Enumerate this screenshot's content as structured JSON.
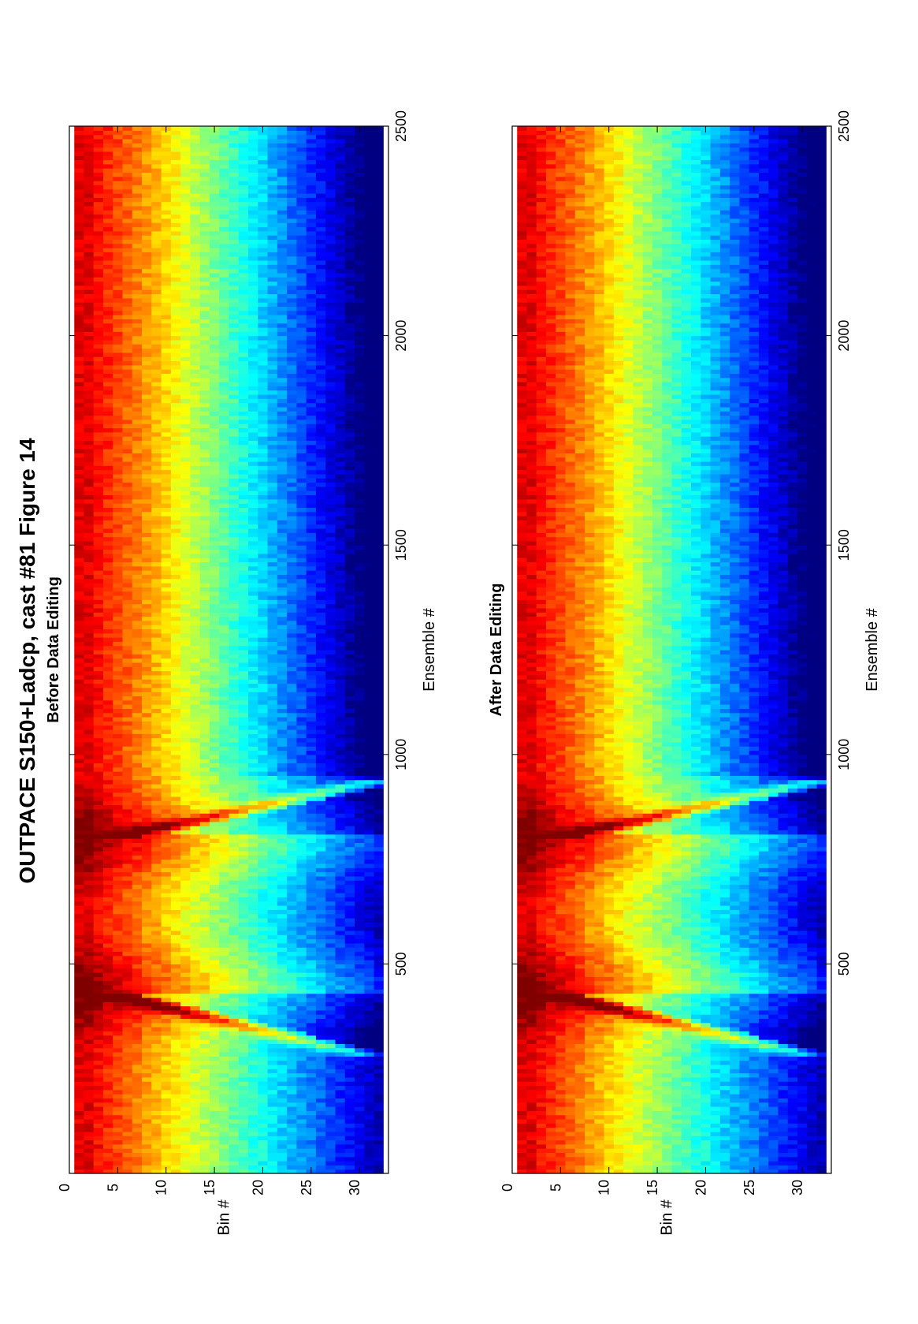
{
  "figure": {
    "main_title": "OUTPACE S150+Ladcp, cast #81  Figure 14"
  },
  "colors": {
    "background": "#ffffff",
    "axes": "#000000",
    "colormap": "jet"
  },
  "chart_data": [
    {
      "type": "heatmap",
      "title": "Before Data Editing",
      "xlabel": "Ensemble #",
      "ylabel": "Bin #",
      "xlim": [
        0,
        2500
      ],
      "ylim": [
        0,
        33
      ],
      "y_reversed": true,
      "xticks": [
        500,
        1000,
        1500,
        2000,
        2500
      ],
      "yticks": [
        0,
        5,
        10,
        15,
        20,
        25,
        30
      ],
      "ytick_labels": [
        "0",
        "5",
        "10",
        "15",
        "20",
        "25",
        "30"
      ],
      "xtick_labels": [
        "500",
        "1000",
        "1500",
        "2000",
        "2500"
      ],
      "grid": false,
      "cell_rows": 32,
      "description_of_field": {
        "profiles_ensemble_ranges": [
          [
            0,
            270
          ],
          [
            270,
            800
          ],
          [
            800,
            930
          ],
          [
            930,
            2500
          ]
        ],
        "strong_maxima_ensembles": [
          430,
          790
        ],
        "descending_front_end_ensemble": [
          270,
          930
        ]
      }
    },
    {
      "type": "heatmap",
      "title": "After Data Editing",
      "xlabel": "Ensemble #",
      "ylabel": "Bin #",
      "xlim": [
        0,
        2500
      ],
      "ylim": [
        0,
        33
      ],
      "y_reversed": true,
      "xticks": [
        500,
        1000,
        1500,
        2000,
        2500
      ],
      "yticks": [
        0,
        5,
        10,
        15,
        20,
        25,
        30
      ],
      "ytick_labels": [
        "0",
        "5",
        "10",
        "15",
        "20",
        "25",
        "30"
      ],
      "xtick_labels": [
        "500",
        "1000",
        "1500",
        "2000",
        "2500"
      ],
      "grid": false,
      "cell_rows": 32,
      "description_of_field": {
        "profiles_ensemble_ranges": [
          [
            0,
            270
          ],
          [
            270,
            800
          ],
          [
            800,
            930
          ],
          [
            930,
            2500
          ]
        ],
        "strong_maxima_ensembles": [
          430,
          790
        ],
        "descending_front_end_ensemble": [
          270,
          930
        ]
      }
    }
  ]
}
